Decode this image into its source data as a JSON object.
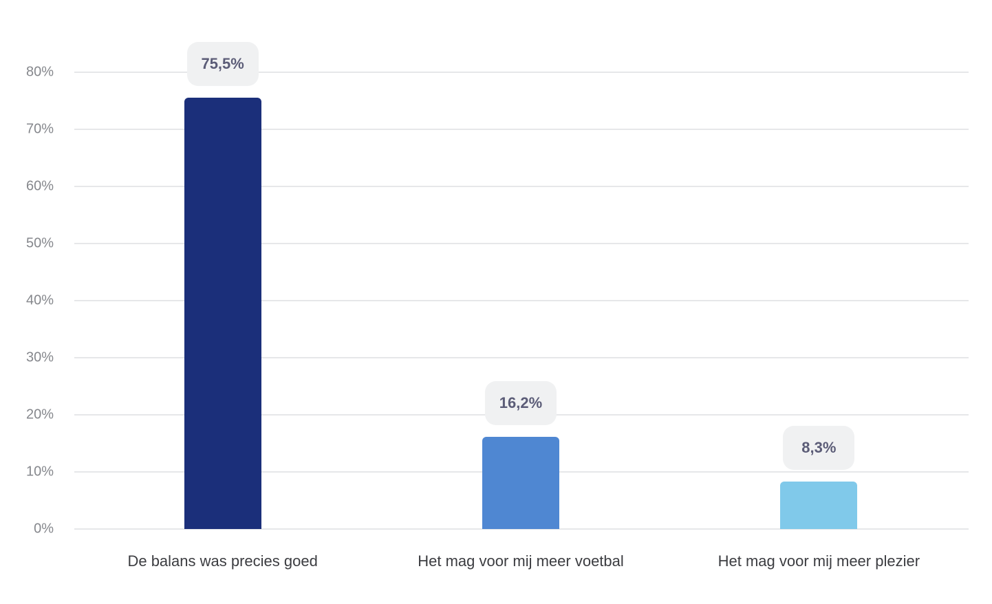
{
  "chart_data": {
    "type": "bar",
    "title": "",
    "xlabel": "",
    "ylabel": "",
    "categories": [
      "De balans was precies goed",
      "Het mag voor mij meer voetbal",
      "Het mag voor mij meer plezier"
    ],
    "values": [
      75.5,
      16.2,
      8.3
    ],
    "value_labels": [
      "75,5%",
      "16,2%",
      "8,3%"
    ],
    "colors": [
      "#1b2f7a",
      "#4f87d2",
      "#80c9ea"
    ],
    "ylim": [
      0,
      80
    ],
    "yticks": [
      0,
      10,
      20,
      30,
      40,
      50,
      60,
      70,
      80
    ],
    "ytick_labels": [
      "0%",
      "10%",
      "20%",
      "30%",
      "40%",
      "50%",
      "60%",
      "70%",
      "80%"
    ],
    "grid": true,
    "legend": null
  }
}
